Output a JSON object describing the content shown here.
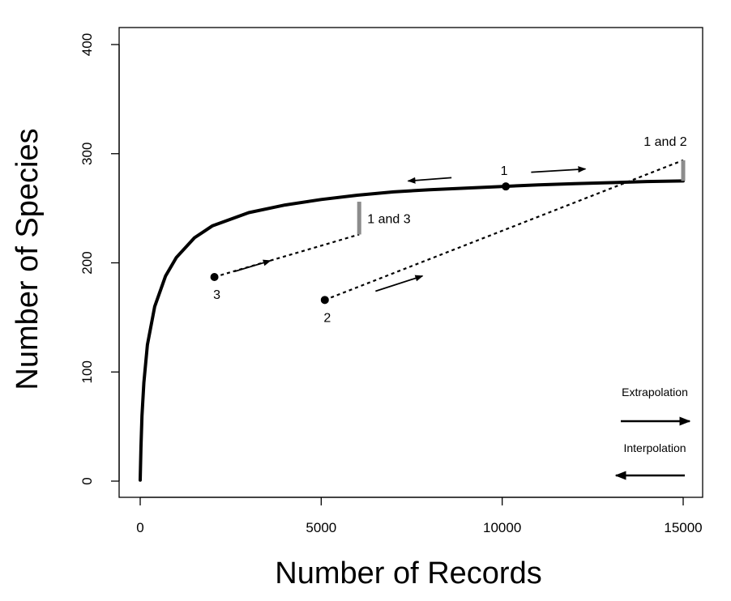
{
  "chart_data": {
    "type": "line",
    "title": "",
    "xlabel": "Number of Records",
    "ylabel": "Number of Species",
    "xlim": [
      0,
      15000
    ],
    "ylim": [
      0,
      400
    ],
    "xticks": [
      0,
      5000,
      10000,
      15000
    ],
    "yticks": [
      0,
      100,
      200,
      300,
      400
    ],
    "grid": false,
    "series": [
      {
        "style": "solid",
        "color": "#000000",
        "x": [
          1,
          20,
          50,
          100,
          200,
          400,
          700,
          1000,
          1500,
          2000,
          3000,
          4000,
          5000,
          6000,
          7000,
          8000,
          9000,
          10000,
          11000,
          12000,
          13000,
          14000,
          15000
        ],
        "y": [
          1,
          30,
          60,
          90,
          125,
          160,
          188,
          205,
          223,
          234,
          246,
          253,
          258,
          262,
          265,
          267,
          268.5,
          270,
          271.5,
          272.5,
          273.5,
          274.5,
          275
        ]
      },
      {
        "style": "dashed",
        "color": "#000000",
        "x": [
          2050,
          6050
        ],
        "y": [
          187,
          226
        ]
      },
      {
        "style": "dashed",
        "color": "#000000",
        "x": [
          5100,
          15000
        ],
        "y": [
          166,
          294
        ]
      }
    ],
    "points": [
      {
        "label": "1",
        "x": 10100,
        "y": 270
      },
      {
        "label": "2",
        "x": 5100,
        "y": 166
      },
      {
        "label": "3",
        "x": 2050,
        "y": 187
      }
    ],
    "gaps": [
      {
        "label": "1 and 3",
        "x": 6050,
        "y_low": 226,
        "y_high": 256
      },
      {
        "label": "1 and 2",
        "x": 15000,
        "y_low": 275,
        "y_high": 294
      }
    ],
    "arrows": [
      {
        "from": [
          8600,
          278
        ],
        "to": [
          7400,
          275
        ]
      },
      {
        "from": [
          10800,
          283
        ],
        "to": [
          12300,
          286
        ]
      },
      {
        "from": [
          2600,
          192
        ],
        "to": [
          3600,
          202
        ]
      },
      {
        "from": [
          6500,
          174
        ],
        "to": [
          7800,
          188
        ]
      }
    ],
    "legend": {
      "placement": "bottom-right",
      "entries": [
        {
          "label": "Extrapolation",
          "direction": "right"
        },
        {
          "label": "Interpolation",
          "direction": "left"
        }
      ]
    }
  }
}
